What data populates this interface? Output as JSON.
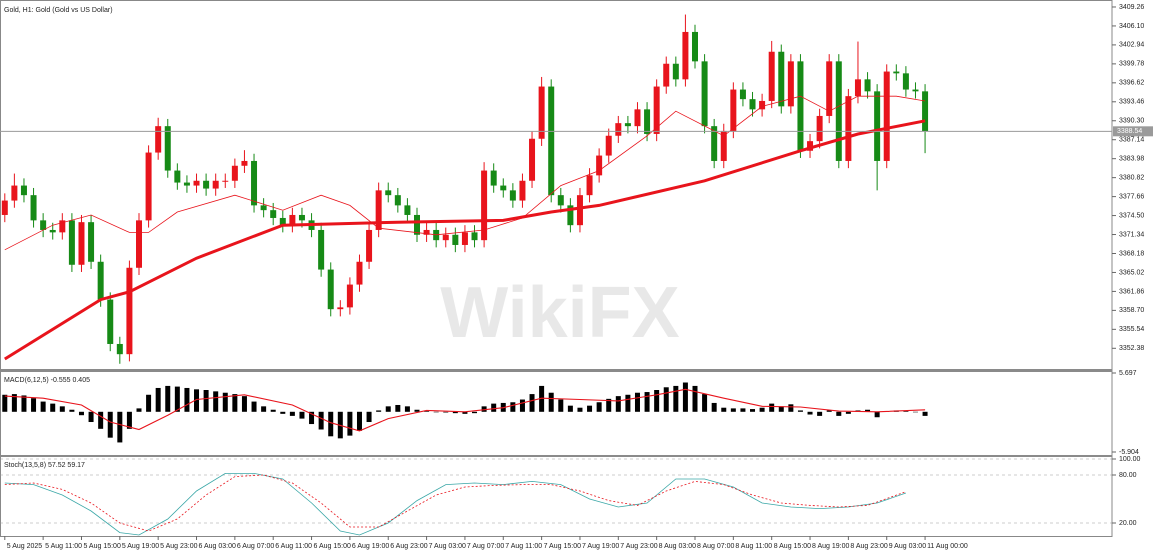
{
  "chart_data": [
    {
      "type": "candlestick",
      "title": "Gold, H1: Gold (Gold vs US Dollar)",
      "watermark": "WikiFX",
      "xlim": [
        -0.5,
        115.5
      ],
      "ylim": [
        3348.93,
        3410.09
      ],
      "yticks": [
        3409.26,
        {
          "value": 3406.1,
          "label": "3406.10"
        },
        3402.94,
        3399.78,
        3396.62,
        3393.46,
        {
          "value": 3390.3,
          "label": "3390.30"
        },
        3387.14,
        3383.98,
        3380.82,
        3377.66,
        {
          "value": 3374.5,
          "label": "3374.50"
        },
        3371.34,
        3368.18,
        3365.02,
        3361.86,
        {
          "value": 3358.7,
          "label": "3358.70"
        },
        3355.54,
        3352.38
      ],
      "up_color": "#e8141c",
      "down_color": "#168a16",
      "current_price": 3388.54,
      "current_color": "#9a9a9a",
      "open": [
        3374.6,
        3377.0,
        3379.5,
        3377.9,
        3373.7,
        3372.1,
        3371.7,
        3373.7,
        3366.3,
        3373.4,
        3366.8,
        3360.5,
        3353.1,
        3351.4,
        3365.8,
        3373.7,
        3385.0,
        3389.4,
        3382.0,
        3380.0,
        3379.5,
        3380.3,
        3379.0,
        3380.3,
        3380.3,
        3382.8,
        3383.6,
        3376.2,
        3375.4,
        3374.1,
        3372.9,
        3374.6,
        3373.7,
        3372.1,
        3365.5,
        3358.9,
        3359.2,
        3363.0,
        3366.8,
        3372.1,
        3378.7,
        3377.9,
        3376.2,
        3374.6,
        3371.3,
        3372.1,
        3370.4,
        3371.3,
        3369.6,
        3371.7,
        3370.4,
        3382.0,
        3379.5,
        3378.7,
        3377.0,
        3380.3,
        3387.3,
        3396.0,
        3377.9,
        3376.2,
        3372.9,
        3377.9,
        3381.2,
        3384.5,
        3387.8,
        3389.9,
        3389.4,
        3392.2,
        3388.1,
        3396.0,
        3399.8,
        3397.2,
        3405.1,
        3400.2,
        3389.4,
        3383.6,
        3388.6,
        3395.5,
        3393.9,
        3392.2,
        3393.6,
        3401.8,
        3392.7,
        3400.2,
        3385.3,
        3386.9,
        3391.1,
        3400.2,
        3383.6,
        3394.4,
        3397.2,
        3395.2,
        3383.6,
        3398.5,
        3398.2,
        3395.5,
        3395.2
      ],
      "high": [
        3378.2,
        3381.5,
        3380.7,
        3379.1,
        3374.9,
        3373.3,
        3374.9,
        3374.9,
        3374.6,
        3374.6,
        3368.0,
        3361.7,
        3354.3,
        3367.0,
        3374.9,
        3386.2,
        3390.8,
        3390.6,
        3383.2,
        3381.2,
        3381.5,
        3381.5,
        3381.5,
        3381.5,
        3384.0,
        3385.4,
        3384.8,
        3377.4,
        3376.6,
        3375.3,
        3375.8,
        3375.8,
        3374.9,
        3373.3,
        3366.7,
        3360.4,
        3364.2,
        3368.0,
        3373.3,
        3380.0,
        3380.0,
        3379.1,
        3377.4,
        3375.8,
        3373.3,
        3373.3,
        3372.5,
        3372.5,
        3372.9,
        3372.9,
        3383.4,
        3383.2,
        3380.7,
        3379.9,
        3381.5,
        3388.5,
        3397.6,
        3397.2,
        3379.1,
        3377.4,
        3379.1,
        3382.4,
        3385.7,
        3389.0,
        3391.1,
        3391.1,
        3393.4,
        3393.4,
        3397.2,
        3401.0,
        3401.0,
        3408.0,
        3406.3,
        3401.4,
        3390.6,
        3389.8,
        3396.7,
        3396.7,
        3395.1,
        3394.8,
        3403.6,
        3403.0,
        3401.4,
        3401.4,
        3388.1,
        3392.3,
        3401.4,
        3401.4,
        3395.6,
        3403.5,
        3398.4,
        3396.4,
        3399.7,
        3399.7,
        3399.4,
        3396.7,
        3396.4
      ],
      "low": [
        3373.4,
        3375.8,
        3376.7,
        3372.5,
        3370.9,
        3370.5,
        3370.5,
        3365.1,
        3365.1,
        3365.6,
        3359.3,
        3351.9,
        3349.8,
        3350.2,
        3364.6,
        3372.5,
        3383.8,
        3380.8,
        3378.8,
        3378.3,
        3378.3,
        3377.8,
        3377.8,
        3379.1,
        3379.1,
        3381.6,
        3375.0,
        3374.2,
        3372.9,
        3371.7,
        3371.7,
        3372.5,
        3370.9,
        3364.3,
        3357.7,
        3357.7,
        3358.0,
        3361.8,
        3365.6,
        3370.9,
        3376.7,
        3375.0,
        3373.4,
        3370.1,
        3370.1,
        3369.2,
        3369.2,
        3368.4,
        3368.4,
        3369.2,
        3369.2,
        3378.3,
        3377.5,
        3375.8,
        3375.8,
        3379.1,
        3386.1,
        3376.7,
        3375.0,
        3371.7,
        3371.7,
        3376.7,
        3380.0,
        3383.3,
        3386.6,
        3388.2,
        3388.2,
        3386.9,
        3386.9,
        3394.8,
        3396.0,
        3396.0,
        3399.0,
        3388.2,
        3382.4,
        3382.4,
        3387.4,
        3392.7,
        3391.0,
        3391.0,
        3392.4,
        3391.5,
        3391.5,
        3384.1,
        3384.1,
        3385.7,
        3389.9,
        3382.4,
        3382.4,
        3393.2,
        3394.0,
        3378.7,
        3382.4,
        3397.0,
        3394.3,
        3394.0,
        3384.9
      ],
      "close": [
        3377.0,
        3379.5,
        3377.9,
        3373.7,
        3372.1,
        3371.7,
        3373.7,
        3366.3,
        3373.4,
        3366.8,
        3360.5,
        3353.1,
        3351.4,
        3365.8,
        3373.7,
        3385.0,
        3389.4,
        3382.0,
        3380.0,
        3379.5,
        3380.3,
        3379.0,
        3380.3,
        3380.3,
        3382.8,
        3383.6,
        3376.2,
        3375.4,
        3374.1,
        3372.9,
        3374.6,
        3373.7,
        3372.1,
        3365.5,
        3358.9,
        3359.2,
        3363.0,
        3366.8,
        3372.1,
        3378.7,
        3377.9,
        3376.2,
        3374.6,
        3371.3,
        3372.1,
        3370.4,
        3371.3,
        3369.6,
        3371.7,
        3370.4,
        3382.0,
        3379.5,
        3378.7,
        3377.0,
        3380.3,
        3387.3,
        3396.0,
        3377.9,
        3376.2,
        3372.9,
        3377.9,
        3381.2,
        3384.5,
        3387.8,
        3389.9,
        3389.4,
        3392.2,
        3388.1,
        3396.0,
        3399.8,
        3397.2,
        3405.1,
        3400.2,
        3389.4,
        3383.6,
        3388.6,
        3395.5,
        3393.9,
        3392.2,
        3393.6,
        3401.8,
        3392.7,
        3400.2,
        3385.3,
        3386.9,
        3391.1,
        3400.2,
        3383.6,
        3394.4,
        3397.2,
        3395.2,
        3383.6,
        3398.5,
        3398.2,
        3395.5,
        3395.2,
        3388.54
      ],
      "overlays": [
        {
          "color": "#e8141c",
          "weight": "bold",
          "x": [
            0,
            10,
            13,
            20,
            29,
            41,
            52,
            57,
            62,
            73,
            83,
            89,
            96
          ],
          "values": [
            3350.6,
            3360.5,
            3361.8,
            3367.4,
            3372.9,
            3373.4,
            3373.7,
            3375.1,
            3376.2,
            3380.3,
            3385.3,
            3388.1,
            3390.3
          ]
        },
        {
          "color": "#e8141c",
          "weight": "thin",
          "x": [
            0,
            5,
            9,
            13,
            15,
            18,
            24,
            29,
            33,
            36,
            39,
            45,
            50,
            54,
            58,
            62,
            67,
            70,
            75,
            79,
            83,
            86,
            89,
            93,
            96
          ],
          "values": [
            3368.8,
            3372.9,
            3374.6,
            3371.7,
            3371.7,
            3375.1,
            3377.9,
            3375.4,
            3377.9,
            3376.2,
            3372.4,
            3371.3,
            3372.1,
            3374.1,
            3379.5,
            3382.0,
            3387.8,
            3391.9,
            3387.8,
            3392.7,
            3394.4,
            3391.9,
            3394.4,
            3394.4,
            3393.6
          ]
        }
      ]
    },
    {
      "type": "macd",
      "title": "MACD(6,12,5) -0.555 0.405",
      "xlim": [
        -0.5,
        115.5
      ],
      "ylim": [
        -6.345,
        5.844
      ],
      "yticks": [
        5.697,
        -5.904
      ],
      "histogram_color": "#000000",
      "histogram": [
        2.5,
        2.6,
        2.4,
        2.0,
        1.5,
        1.2,
        0.8,
        0.3,
        -0.5,
        -1.5,
        -2.5,
        -3.8,
        -4.5,
        -2.5,
        0.5,
        2.5,
        3.5,
        3.8,
        3.7,
        3.5,
        3.3,
        3.2,
        3.0,
        2.8,
        2.6,
        2.3,
        1.5,
        0.8,
        0.3,
        -0.3,
        -0.6,
        -1.0,
        -1.8,
        -2.6,
        -3.6,
        -3.9,
        -3.5,
        -2.8,
        -1.5,
        0.2,
        0.8,
        1.0,
        0.8,
        0.3,
        0.1,
        0.0,
        -0.1,
        -0.2,
        -0.3,
        -0.2,
        0.8,
        1.2,
        1.3,
        1.4,
        1.8,
        2.6,
        3.8,
        2.8,
        1.8,
        0.9,
        0.6,
        0.9,
        1.4,
        1.9,
        2.3,
        2.5,
        2.8,
        2.9,
        3.2,
        3.6,
        3.8,
        4.3,
        3.8,
        2.6,
        1.3,
        0.6,
        0.5,
        0.5,
        0.4,
        0.6,
        1.2,
        0.8,
        1.1,
        0.2,
        -0.4,
        -0.6,
        0.2,
        -0.6,
        -0.3,
        0.2,
        0.3,
        -0.8,
        0.1,
        0.2,
        0.1,
        0.0,
        -0.6
      ],
      "signal": {
        "color": "#e8141c",
        "x": [
          0,
          4,
          8,
          11,
          14,
          17,
          20,
          25,
          30,
          34,
          37,
          40,
          44,
          48,
          52,
          56,
          60,
          64,
          68,
          71,
          75,
          79,
          83,
          87,
          91,
          96
        ],
        "values": [
          2.3,
          2.0,
          1.0,
          -1.5,
          -2.6,
          -0.5,
          1.8,
          2.5,
          1.0,
          -1.6,
          -2.8,
          -1.0,
          0.2,
          0.0,
          0.6,
          2.0,
          1.8,
          1.6,
          2.5,
          3.3,
          2.0,
          0.8,
          0.7,
          0.1,
          0.0,
          0.3
        ]
      }
    },
    {
      "type": "stoch",
      "title": "Stoch(13,5,8) 57.52 59.17",
      "xlim": [
        -0.5,
        115.5
      ],
      "ylim": [
        5,
        102.5
      ],
      "grid": true,
      "yticks": [
        {
          "value": 100,
          "label": "100.00"
        },
        {
          "value": 80,
          "label": "80.00"
        },
        {
          "value": 20,
          "label": "20.00"
        }
      ],
      "series": [
        {
          "color": "#3aa7a7",
          "dash": "solid",
          "x": [
            0,
            3,
            6,
            9,
            12,
            14,
            17,
            20,
            23,
            26,
            29,
            32,
            35,
            37,
            40,
            43,
            46,
            49,
            52,
            55,
            58,
            61,
            64,
            67,
            70,
            73,
            76,
            79,
            82,
            85,
            88,
            91,
            94
          ],
          "values": [
            70,
            68,
            55,
            35,
            8,
            5,
            25,
            60,
            82,
            82,
            75,
            45,
            10,
            5,
            20,
            48,
            68,
            70,
            68,
            72,
            68,
            50,
            40,
            45,
            75,
            75,
            65,
            45,
            40,
            38,
            40,
            45,
            57.52
          ]
        },
        {
          "color": "#e8141c",
          "dash": "dotted",
          "x": [
            0,
            3,
            6,
            9,
            12,
            15,
            18,
            21,
            24,
            27,
            30,
            33,
            36,
            39,
            42,
            45,
            48,
            51,
            54,
            57,
            60,
            63,
            66,
            69,
            72,
            75,
            78,
            81,
            84,
            87,
            90,
            94
          ],
          "values": [
            68,
            70,
            62,
            45,
            20,
            10,
            25,
            55,
            78,
            80,
            70,
            45,
            15,
            15,
            35,
            55,
            65,
            67,
            68,
            68,
            60,
            48,
            42,
            60,
            72,
            68,
            55,
            45,
            42,
            40,
            42,
            59.17
          ]
        }
      ],
      "xticks": [
        {
          "value": 0,
          "label": "5 Aug 2025"
        },
        {
          "value": 4,
          "label": "5 Aug 11:00"
        },
        {
          "value": 8,
          "label": "5 Aug 15:00"
        },
        {
          "value": 12,
          "label": "5 Aug 19:00"
        },
        {
          "value": 16,
          "label": "5 Aug 23:00"
        },
        {
          "value": 20,
          "label": "6 Aug 03:00"
        },
        {
          "value": 24,
          "label": "6 Aug 07:00"
        },
        {
          "value": 28,
          "label": "6 Aug 11:00"
        },
        {
          "value": 32,
          "label": "6 Aug 15:00"
        },
        {
          "value": 36,
          "label": "6 Aug 19:00"
        },
        {
          "value": 40,
          "label": "6 Aug 23:00"
        },
        {
          "value": 44,
          "label": "7 Aug 03:00"
        },
        {
          "value": 48,
          "label": "7 Aug 07:00"
        },
        {
          "value": 52,
          "label": "7 Aug 11:00"
        },
        {
          "value": 56,
          "label": "7 Aug 15:00"
        },
        {
          "value": 60,
          "label": "7 Aug 19:00"
        },
        {
          "value": 64,
          "label": "7 Aug 23:00"
        },
        {
          "value": 68,
          "label": "8 Aug 03:00"
        },
        {
          "value": 72,
          "label": "8 Aug 07:00"
        },
        {
          "value": 76,
          "label": "8 Aug 11:00"
        },
        {
          "value": 80,
          "label": "8 Aug 15:00"
        },
        {
          "value": 84,
          "label": "8 Aug 19:00"
        },
        {
          "value": 88,
          "label": "8 Aug 23:00"
        },
        {
          "value": 92,
          "label": "9 Aug 03:00"
        },
        {
          "value": 96,
          "label": "11 Aug 00:00"
        }
      ]
    }
  ]
}
